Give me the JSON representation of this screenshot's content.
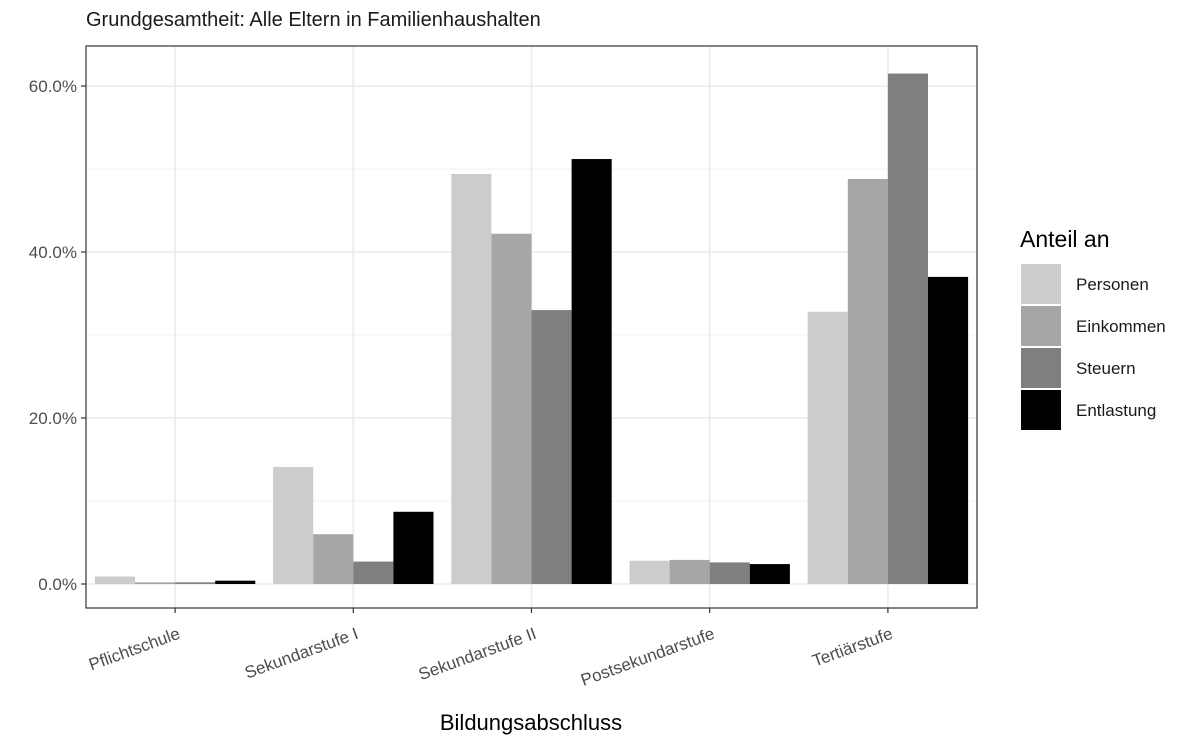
{
  "chart_data": {
    "type": "bar",
    "subtitle": "Grundgesamtheit: Alle Eltern in Familienhaushalten",
    "xlabel": "Bildungsabschluss",
    "ylabel": "",
    "categories": [
      "Pflichtschule",
      "Sekundarstufe I",
      "Sekundarstufe II",
      "Postsekundarstufe",
      "Tertiärstufe"
    ],
    "series": [
      {
        "name": "Personen",
        "values": [
          0.9,
          14.1,
          49.4,
          2.8,
          32.8
        ],
        "color": "#cccccc"
      },
      {
        "name": "Einkommen",
        "values": [
          0.2,
          6.0,
          42.2,
          2.9,
          48.8
        ],
        "color": "#a6a6a6"
      },
      {
        "name": "Steuern",
        "values": [
          0.2,
          2.7,
          33.0,
          2.6,
          61.5
        ],
        "color": "#7f7f7f"
      },
      {
        "name": "Entlastung",
        "values": [
          0.4,
          8.7,
          51.2,
          2.4,
          37.0
        ],
        "color": "#000000"
      }
    ],
    "ylim": [
      -3,
      65
    ],
    "yticks": [
      0,
      20,
      40,
      60
    ],
    "ytick_labels": [
      "0.0%",
      "20.0%",
      "40.0%",
      "60.0%"
    ],
    "grid": true,
    "legend": {
      "title": "Anteil an",
      "position": "right"
    }
  }
}
